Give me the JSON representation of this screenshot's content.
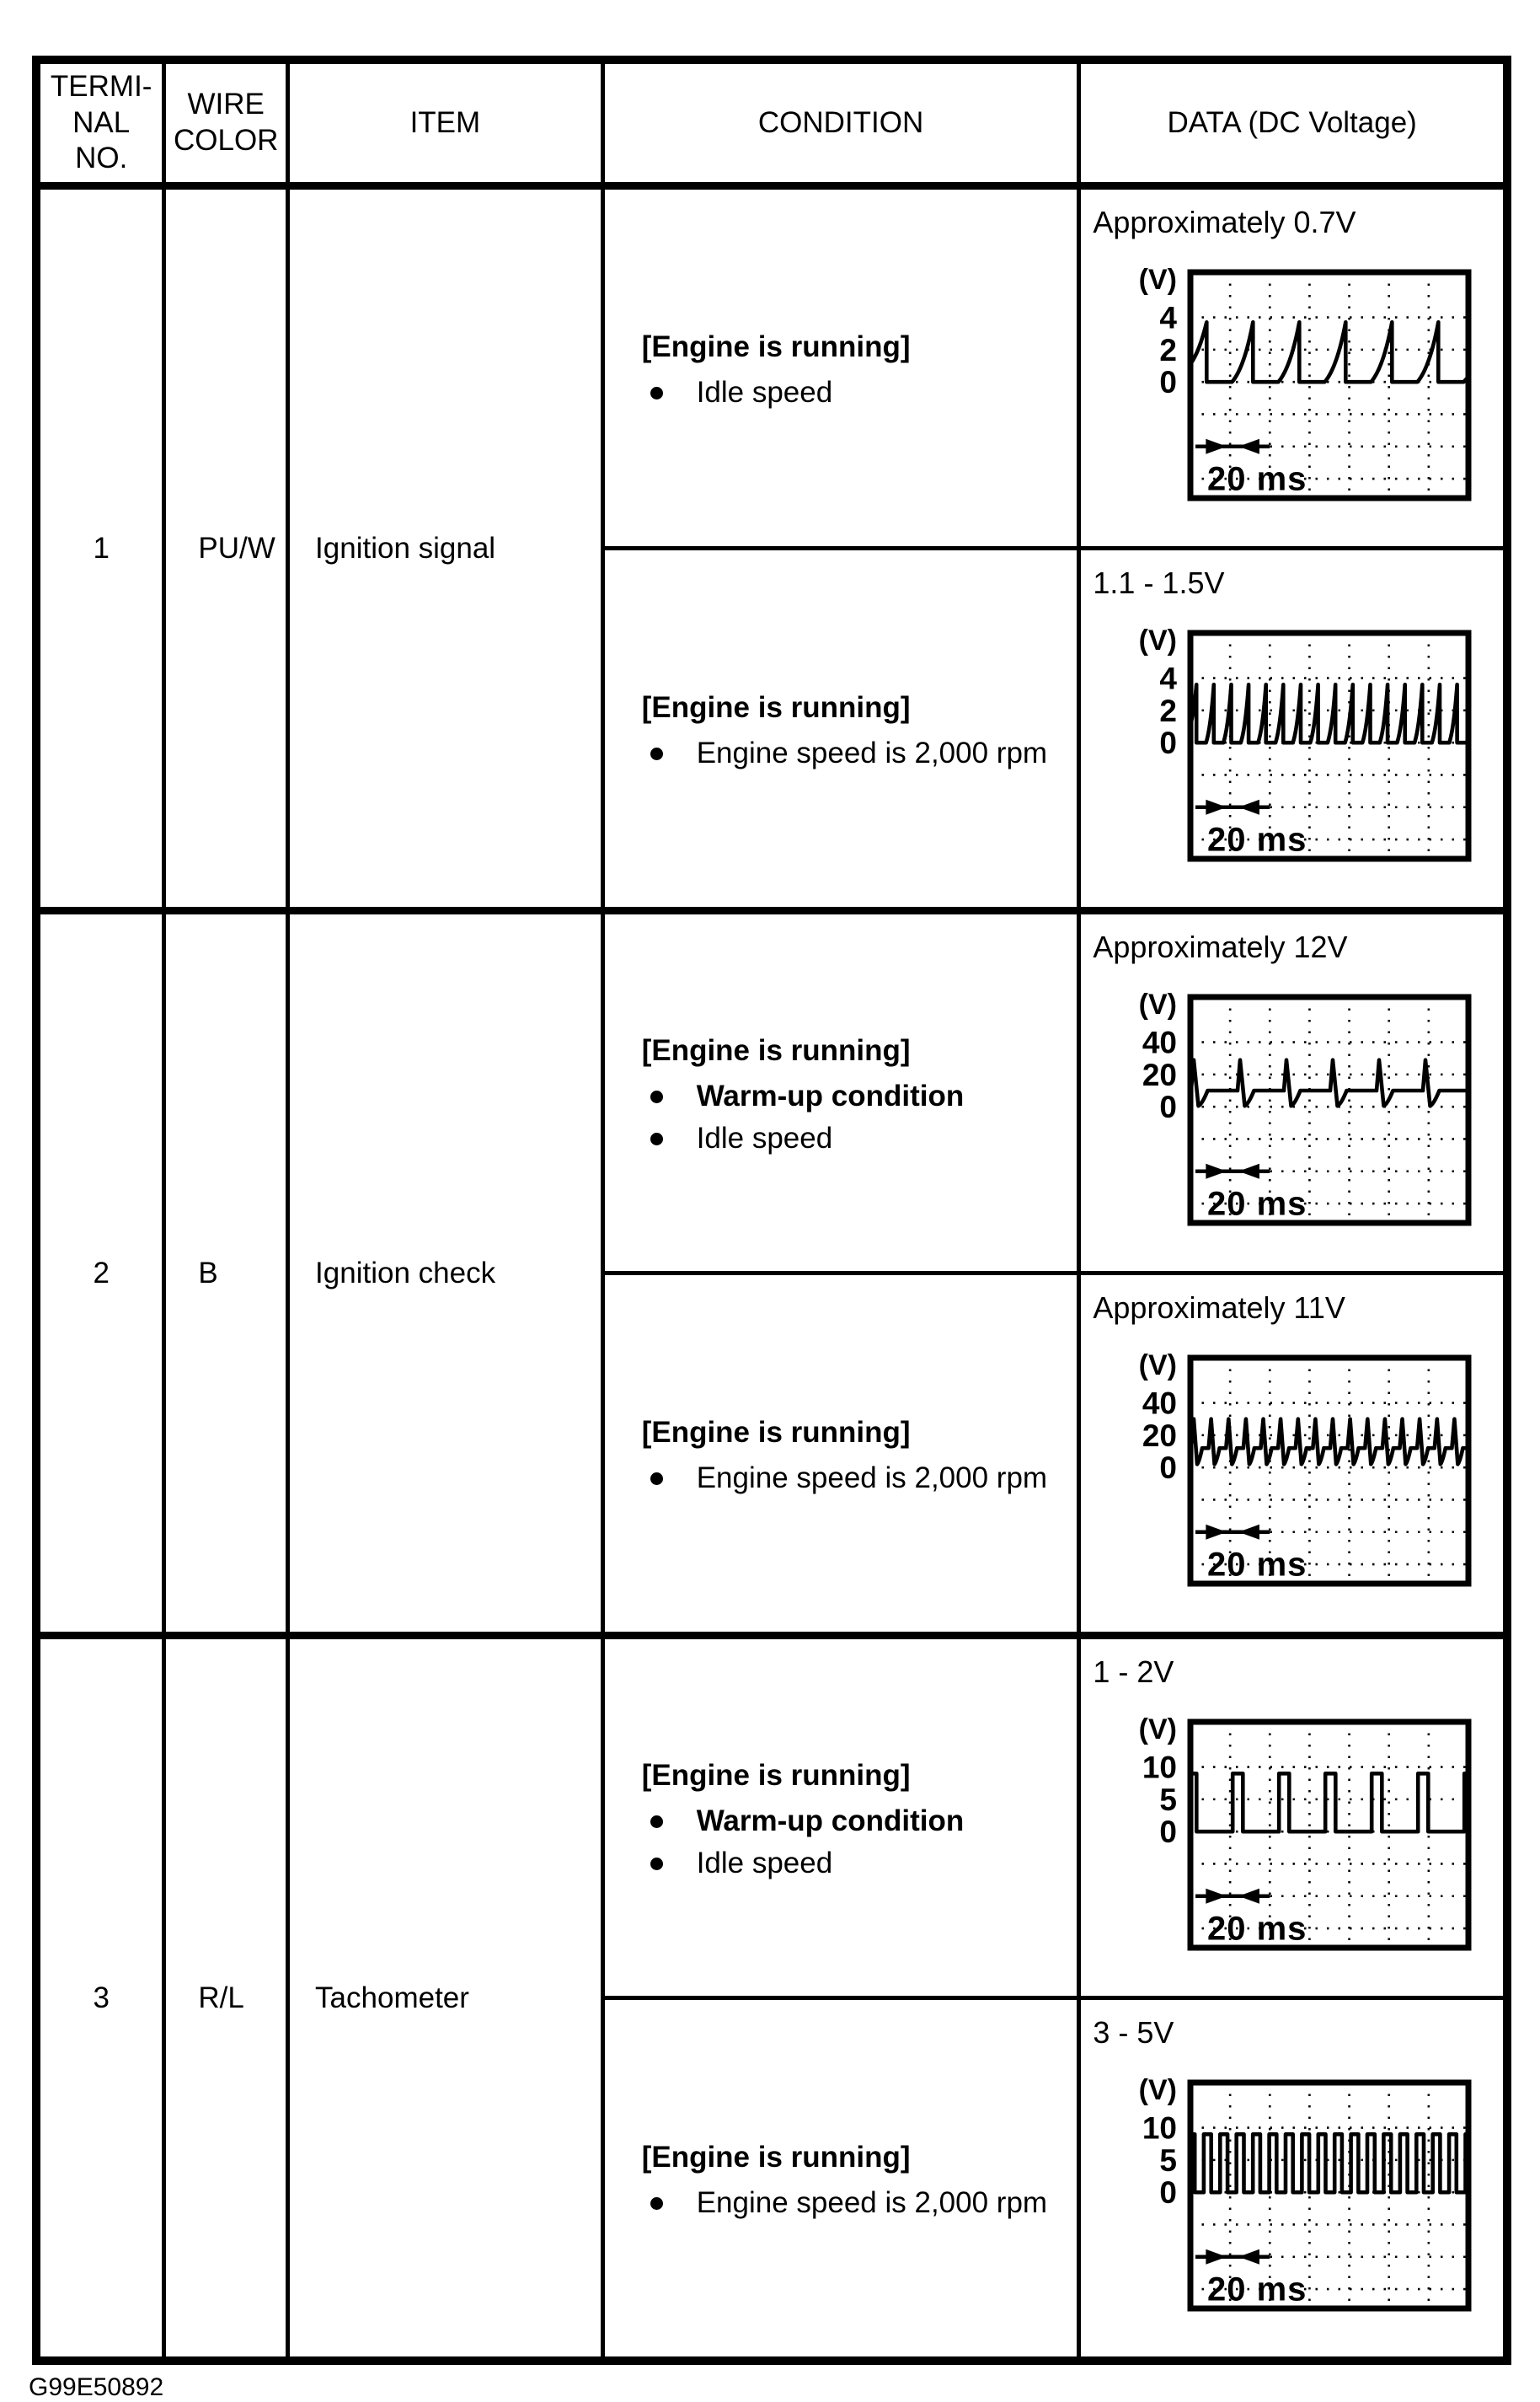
{
  "page": {
    "footer_code": "G99E50892",
    "ink": "#000000",
    "paper": "#ffffff"
  },
  "table": {
    "headers": [
      {
        "id": "terminal",
        "label": "TERMI-\nNAL\nNO."
      },
      {
        "id": "wire",
        "label": "WIRE\nCOLOR"
      },
      {
        "id": "item",
        "label": "ITEM"
      },
      {
        "id": "condition",
        "label": "CONDITION"
      },
      {
        "id": "data",
        "label": "DATA (DC Voltage)"
      }
    ],
    "rows": [
      {
        "terminal": "1",
        "wire_color": "PU/W",
        "item": "Ignition signal",
        "sub_rows": [
          {
            "condition": {
              "title": "[Engine is running]",
              "bullets": [
                "Idle speed"
              ]
            },
            "data": {
              "label": "Approximately 0.7V",
              "scope": {
                "y_unit": "(V)",
                "y_ticks": [
                  "4",
                  "2",
                  "0"
                ],
                "tick_step": 2,
                "time_label": "20 ms",
                "wave": {
                  "type": "ramp",
                  "count": 6,
                  "base": 0,
                  "peak": 3.7
                }
              }
            }
          },
          {
            "condition": {
              "title": "[Engine is running]",
              "bullets": [
                "Engine speed is 2,000 rpm"
              ]
            },
            "data": {
              "label": "1.1 - 1.5V",
              "scope": {
                "y_unit": "(V)",
                "y_ticks": [
                  "4",
                  "2",
                  "0"
                ],
                "tick_step": 2,
                "time_label": "20 ms",
                "wave": {
                  "type": "ramp",
                  "count": 16,
                  "base": 0,
                  "peak": 3.6
                }
              }
            }
          }
        ]
      },
      {
        "terminal": "2",
        "wire_color": "B",
        "item": "Ignition check",
        "sub_rows": [
          {
            "condition": {
              "title": "[Engine is running]",
              "bullets": [
                "Warm-up condition",
                "Idle speed"
              ]
            },
            "data": {
              "label": "Approximately 12V",
              "scope": {
                "y_unit": "(V)",
                "y_ticks": [
                  "40",
                  "20",
                  "0"
                ],
                "tick_step": 20,
                "time_label": "20 ms",
                "wave": {
                  "type": "spike",
                  "count": 6,
                  "base": 10,
                  "peak": 29,
                  "dip": 0.5
                }
              }
            }
          },
          {
            "condition": {
              "title": "[Engine is running]",
              "bullets": [
                "Engine speed is 2,000 rpm"
              ]
            },
            "data": {
              "label": "Approximately 11V",
              "scope": {
                "y_unit": "(V)",
                "y_ticks": [
                  "40",
                  "20",
                  "0"
                ],
                "tick_step": 20,
                "time_label": "20 ms",
                "wave": {
                  "type": "spike",
                  "count": 16,
                  "base": 12,
                  "peak": 30,
                  "dip": 2
                }
              }
            }
          }
        ]
      },
      {
        "terminal": "3",
        "wire_color": "R/L",
        "item": "Tachometer",
        "sub_rows": [
          {
            "condition": {
              "title": "[Engine is running]",
              "bullets": [
                "Warm-up condition",
                "Idle speed"
              ]
            },
            "data": {
              "label": "1 - 2V",
              "scope": {
                "y_unit": "(V)",
                "y_ticks": [
                  "10",
                  "5",
                  "0"
                ],
                "tick_step": 5,
                "time_label": "20 ms",
                "wave": {
                  "type": "square",
                  "count": 6,
                  "high": 9,
                  "low": 0,
                  "duty": 0.22
                }
              }
            }
          },
          {
            "condition": {
              "title": "[Engine is running]",
              "bullets": [
                "Engine speed is 2,000 rpm"
              ]
            },
            "data": {
              "label": "3 - 5V",
              "scope": {
                "y_unit": "(V)",
                "y_ticks": [
                  "10",
                  "5",
                  "0"
                ],
                "tick_step": 5,
                "time_label": "20 ms",
                "wave": {
                  "type": "square",
                  "count": 17,
                  "high": 9,
                  "low": 0,
                  "duty": 0.45
                }
              }
            }
          }
        ]
      }
    ]
  }
}
